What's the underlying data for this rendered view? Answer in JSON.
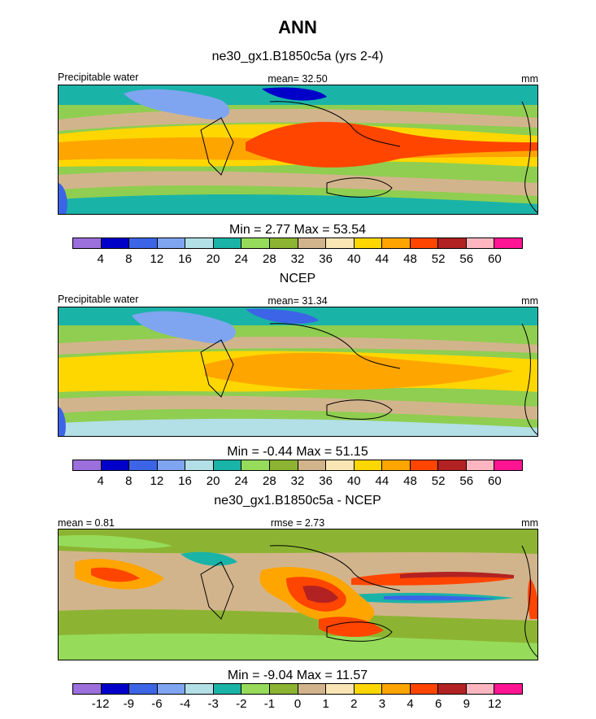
{
  "title": "ANN",
  "units": "mm",
  "palette": [
    "#9b6fdc",
    "#0000c8",
    "#3c64e6",
    "#7fa5f0",
    "#b3dfe6",
    "#1ab3a8",
    "#96dc5a",
    "#8cb432",
    "#d2b48c",
    "#fae6b4",
    "#ffd700",
    "#ffa500",
    "#ff4500",
    "#b22222",
    "#ffb6c1",
    "#ff1493"
  ],
  "panels": [
    {
      "title": "ne30_gx1.B1850c5a (yrs 2-4)",
      "left_label": "Precipitable water",
      "center_label": "mean=  32.50",
      "right_label": "mm",
      "stats": "Min =   2.77 Max =  53.54",
      "kind": "model"
    },
    {
      "title": "NCEP",
      "left_label": "Precipitable water",
      "center_label": "mean=  31.34",
      "right_label": "mm",
      "stats": "Min =  -0.44 Max =  51.15",
      "kind": "obs"
    },
    {
      "title": "ne30_gx1.B1850c5a - NCEP",
      "left_label": "mean =   0.81",
      "center_label": "rmse =   2.73",
      "right_label": "mm",
      "stats": "Min =  -9.04 Max =  11.57",
      "kind": "diff"
    }
  ],
  "colorbar_levels": [
    "4",
    "8",
    "12",
    "16",
    "20",
    "24",
    "28",
    "32",
    "36",
    "40",
    "44",
    "48",
    "52",
    "56",
    "60"
  ],
  "colorbar_diff_levels": [
    "-12",
    "-9",
    "-6",
    "-4",
    "-3",
    "-2",
    "-1",
    "0",
    "1",
    "2",
    "3",
    "4",
    "6",
    "9",
    "12"
  ]
}
